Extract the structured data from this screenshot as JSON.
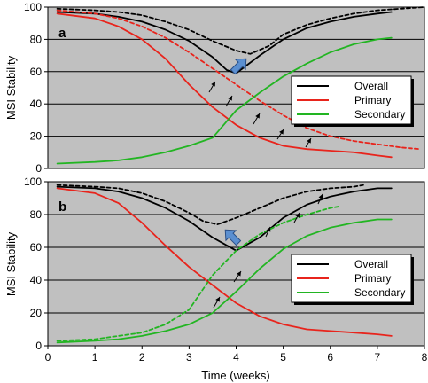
{
  "chart_data": [
    {
      "type": "line",
      "panel_label": "a",
      "ylabel": "MSI Stability",
      "xlim": [
        0,
        8
      ],
      "ylim": [
        0,
        100
      ],
      "yticks": [
        0,
        20,
        40,
        60,
        80,
        100
      ],
      "grid": true,
      "legend_placement": "right",
      "legend": [
        "Overall",
        "Primary",
        "Secondary"
      ],
      "series": [
        {
          "name": "Overall",
          "color": "#000000",
          "dash": "solid",
          "x": [
            0.2,
            1.0,
            1.5,
            2.0,
            2.5,
            3.0,
            3.5,
            3.8,
            4.0,
            4.5,
            5.0,
            5.5,
            6.0,
            6.5,
            7.0,
            7.3
          ],
          "y": [
            97,
            96,
            94,
            91,
            86,
            79,
            69,
            61,
            59,
            70,
            80,
            87,
            91,
            94,
            96,
            97
          ]
        },
        {
          "name": "Overall",
          "color": "#000000",
          "dash": "dashed",
          "x": [
            0.2,
            1.0,
            1.5,
            2.0,
            2.5,
            3.0,
            3.5,
            4.0,
            4.3,
            4.7,
            5.0,
            5.5,
            6.0,
            6.5,
            7.0,
            7.5,
            8.0
          ],
          "y": [
            99,
            98,
            97,
            95,
            91,
            86,
            79,
            73,
            71,
            76,
            83,
            89,
            93,
            96,
            98,
            99,
            100
          ]
        },
        {
          "name": "Primary",
          "color": "#e8241c",
          "dash": "solid",
          "x": [
            0.2,
            1.0,
            1.5,
            2.0,
            2.5,
            3.0,
            3.5,
            4.0,
            4.5,
            5.0,
            5.5,
            6.0,
            6.5,
            7.0,
            7.3
          ],
          "y": [
            96,
            93,
            88,
            80,
            68,
            52,
            38,
            27,
            19,
            14,
            12,
            11,
            10,
            8,
            7
          ]
        },
        {
          "name": "Primary",
          "color": "#e8241c",
          "dash": "dashed",
          "x": [
            0.2,
            1.0,
            1.5,
            2.0,
            2.5,
            3.0,
            3.5,
            4.0,
            4.5,
            5.0,
            5.5,
            6.0,
            6.5,
            7.0,
            7.5,
            7.9
          ],
          "y": [
            98,
            96,
            93,
            88,
            81,
            72,
            62,
            52,
            42,
            33,
            25,
            20,
            17,
            15,
            13,
            12
          ]
        },
        {
          "name": "Secondary",
          "color": "#22b522",
          "dash": "solid",
          "x": [
            0.2,
            1.0,
            1.5,
            2.0,
            2.5,
            3.0,
            3.5,
            4.0,
            4.5,
            5.0,
            5.5,
            6.0,
            6.5,
            7.0,
            7.3
          ],
          "y": [
            3,
            4,
            5,
            7,
            10,
            14,
            19,
            36,
            47,
            57,
            65,
            72,
            77,
            80,
            81
          ]
        }
      ]
    },
    {
      "type": "line",
      "panel_label": "b",
      "xlabel": "Time (weeks)",
      "ylabel": "MSI Stability",
      "xlim": [
        0,
        8
      ],
      "ylim": [
        0,
        100
      ],
      "xticks": [
        0,
        1,
        2,
        3,
        4,
        5,
        6,
        7,
        8
      ],
      "yticks": [
        0,
        20,
        40,
        60,
        80,
        100
      ],
      "grid": true,
      "legend_placement": "right",
      "legend": [
        "Overall",
        "Primary",
        "Secondary"
      ],
      "series": [
        {
          "name": "Overall",
          "color": "#000000",
          "dash": "solid",
          "x": [
            0.2,
            1.0,
            1.5,
            2.0,
            2.5,
            3.0,
            3.5,
            4.0,
            4.5,
            5.0,
            5.5,
            6.0,
            6.5,
            7.0,
            7.3
          ],
          "y": [
            97,
            96,
            94,
            90,
            84,
            76,
            66,
            58,
            66,
            78,
            86,
            91,
            94,
            96,
            96
          ]
        },
        {
          "name": "Overall",
          "color": "#000000",
          "dash": "dashed",
          "x": [
            0.2,
            1.0,
            1.5,
            2.0,
            2.5,
            3.0,
            3.3,
            3.6,
            4.0,
            4.5,
            5.0,
            5.5,
            6.0,
            6.5,
            6.7
          ],
          "y": [
            98,
            97,
            96,
            93,
            88,
            81,
            76,
            74,
            78,
            84,
            90,
            94,
            96,
            97,
            98
          ]
        },
        {
          "name": "Primary",
          "color": "#e8241c",
          "dash": "solid",
          "x": [
            0.2,
            1.0,
            1.5,
            2.0,
            2.5,
            3.0,
            3.5,
            4.0,
            4.5,
            5.0,
            5.5,
            6.0,
            6.5,
            7.0,
            7.3
          ],
          "y": [
            96,
            93,
            87,
            75,
            61,
            48,
            37,
            26,
            18,
            13,
            10,
            9,
            8,
            7,
            6
          ]
        },
        {
          "name": "Secondary",
          "color": "#22b522",
          "dash": "solid",
          "x": [
            0.2,
            1.0,
            1.5,
            2.0,
            2.5,
            3.0,
            3.5,
            4.0,
            4.5,
            5.0,
            5.5,
            6.0,
            6.5,
            7.0,
            7.3
          ],
          "y": [
            2,
            3,
            4,
            6,
            9,
            13,
            20,
            33,
            47,
            59,
            67,
            72,
            75,
            77,
            77
          ]
        },
        {
          "name": "Secondary",
          "color": "#22b522",
          "dash": "dashed",
          "x": [
            0.2,
            1.0,
            1.5,
            2.0,
            2.5,
            3.0,
            3.5,
            4.0,
            4.5,
            5.0,
            5.5,
            6.0,
            6.2
          ],
          "y": [
            3,
            4,
            6,
            8,
            13,
            22,
            43,
            58,
            68,
            75,
            80,
            84,
            85
          ]
        }
      ]
    }
  ]
}
